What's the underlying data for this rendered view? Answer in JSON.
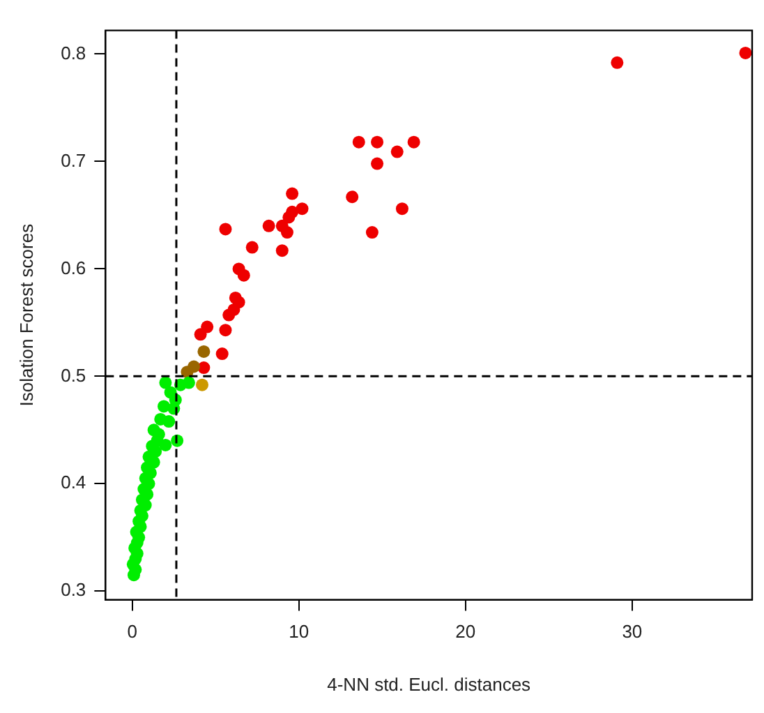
{
  "chart_data": {
    "type": "scatter",
    "xlabel": "4-NN std. Eucl. distances",
    "ylabel": "Isolation Forest scores",
    "xlim": [
      -1.6,
      37.2
    ],
    "ylim": [
      0.292,
      0.822
    ],
    "xticks": [
      0,
      10,
      20,
      30
    ],
    "yticks": [
      0.3,
      0.4,
      0.5,
      0.6,
      0.7,
      0.8
    ],
    "grid": false,
    "legend": false,
    "marker": "circle",
    "ref_lines": [
      {
        "axis": "x",
        "value": 2.65,
        "line_style": "dashed",
        "color": "#000000"
      },
      {
        "axis": "y",
        "value": 0.5,
        "line_style": "dashed",
        "color": "#000000"
      }
    ],
    "series": [
      {
        "color": "#00ee00",
        "x": [
          0.1,
          0.2,
          0.05,
          0.2,
          0.3,
          0.15,
          0.3,
          0.4,
          0.25,
          0.5,
          0.4,
          0.6,
          0.5,
          0.8,
          0.6,
          0.9,
          0.7,
          1.0,
          0.8,
          1.1,
          0.9,
          1.3,
          1.0,
          1.4,
          1.2,
          2.0,
          1.5,
          1.6,
          2.7,
          1.3,
          2.2,
          1.7,
          2.5,
          1.9,
          2.6,
          2.3,
          2.0,
          3.4,
          2.9
        ],
        "values": [
          0.315,
          0.32,
          0.325,
          0.33,
          0.335,
          0.34,
          0.345,
          0.35,
          0.355,
          0.36,
          0.365,
          0.37,
          0.375,
          0.38,
          0.385,
          0.39,
          0.395,
          0.4,
          0.405,
          0.41,
          0.415,
          0.42,
          0.425,
          0.43,
          0.435,
          0.436,
          0.44,
          0.446,
          0.44,
          0.45,
          0.458,
          0.46,
          0.47,
          0.472,
          0.478,
          0.485,
          0.494,
          0.494,
          0.492
        ]
      },
      {
        "color": "#cc9900",
        "x": [
          4.2
        ],
        "values": [
          0.492
        ]
      },
      {
        "color": "#996600",
        "x": [
          4.3,
          3.7,
          3.3
        ],
        "values": [
          0.523,
          0.509,
          0.504
        ]
      },
      {
        "color": "#ee0000",
        "x": [
          29.1,
          36.8,
          13.6,
          14.7,
          15.9,
          16.9,
          14.7,
          13.2,
          16.2,
          14.4,
          9.6,
          10.2,
          9.4,
          9.6,
          9.3,
          9.0,
          8.2,
          7.2,
          9.0,
          5.6,
          6.4,
          6.7,
          6.2,
          6.4,
          6.1,
          5.8,
          4.5,
          4.1,
          5.6,
          5.4,
          4.3
        ],
        "values": [
          0.792,
          0.801,
          0.718,
          0.718,
          0.709,
          0.718,
          0.698,
          0.667,
          0.656,
          0.634,
          0.67,
          0.656,
          0.648,
          0.653,
          0.634,
          0.64,
          0.64,
          0.62,
          0.617,
          0.637,
          0.6,
          0.594,
          0.573,
          0.569,
          0.562,
          0.557,
          0.546,
          0.539,
          0.543,
          0.521,
          0.508
        ]
      }
    ]
  }
}
